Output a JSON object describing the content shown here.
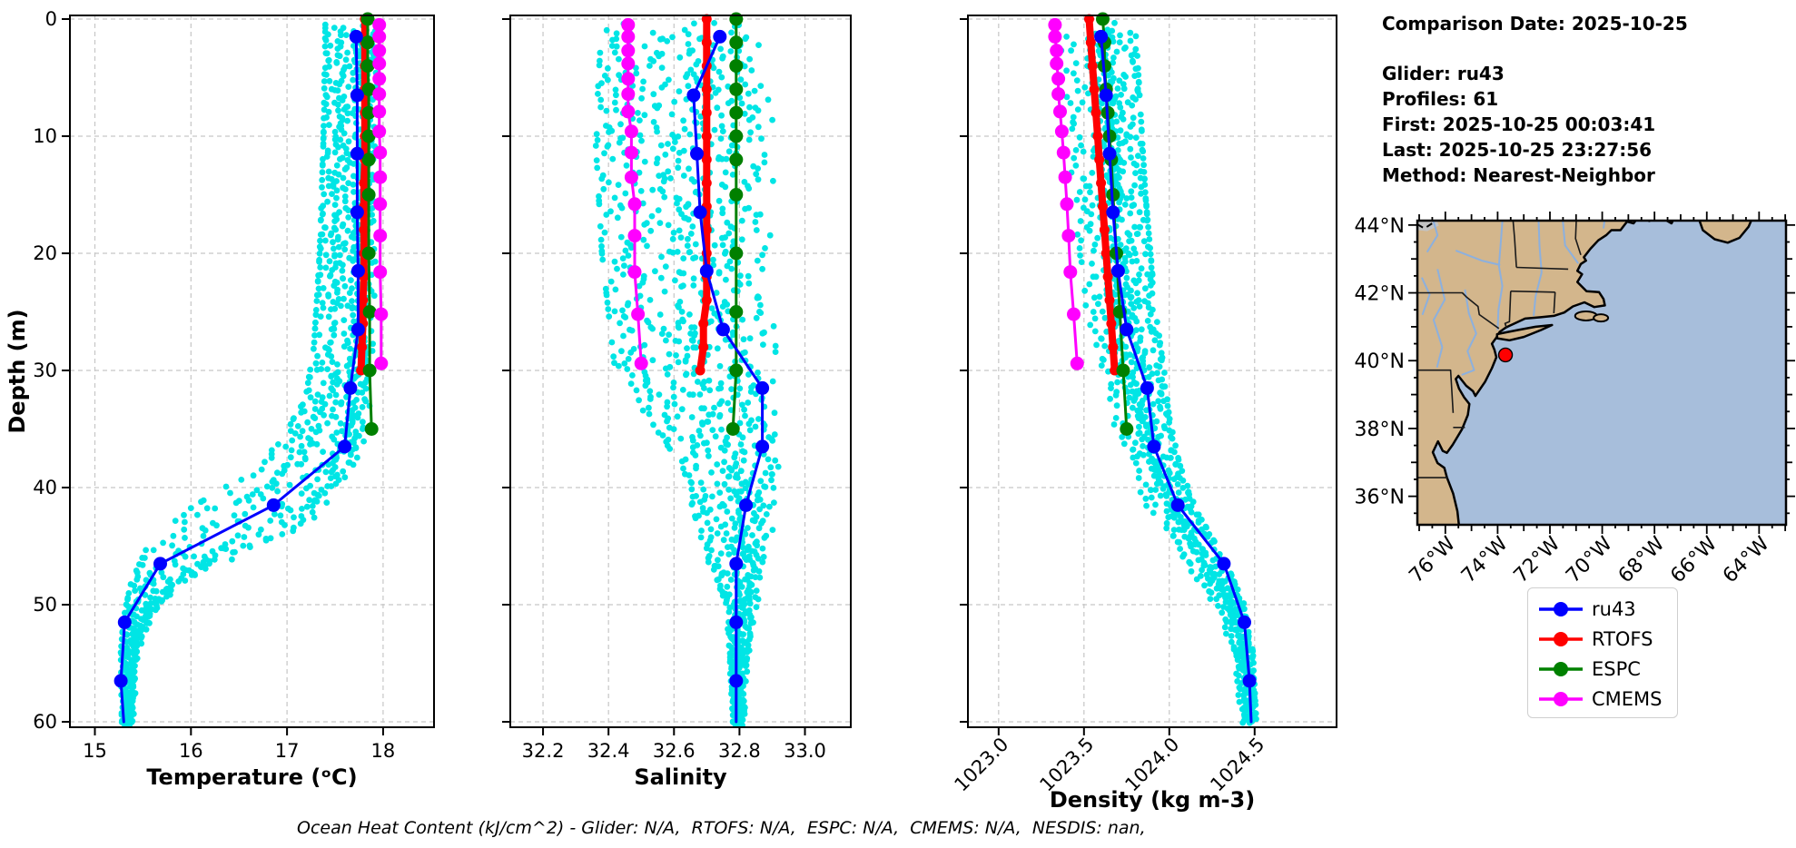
{
  "info_panel": {
    "lines": [
      "Comparison Date: 2025-10-25",
      "Glider: ru43",
      "Profiles: 61",
      "First: 2025-10-25 00:03:41",
      "Last: 2025-10-25 23:27:56",
      "Method: Nearest-Neighbor"
    ]
  },
  "footer": {
    "text": "Ocean Heat Content (kJ/cm^2) - Glider: N/A,  RTOFS: N/A,  ESPC: N/A,  CMEMS: N/A,  NESDIS: nan,"
  },
  "legend": {
    "items": [
      {
        "label": "ru43",
        "color": "#0000ff"
      },
      {
        "label": "RTOFS",
        "color": "#ff0000"
      },
      {
        "label": "ESPC",
        "color": "#008000"
      },
      {
        "label": "CMEMS",
        "color": "#ff00ff"
      }
    ]
  },
  "chart_data": [
    {
      "name": "temperature",
      "type": "scatter",
      "xlabel": "Temperature (ᵒC)",
      "ylabel": "Depth (m)",
      "xlim": [
        14.74,
        18.53
      ],
      "ylim": [
        0,
        60
      ],
      "xticks": [
        15,
        16,
        17,
        18
      ],
      "xtick_labels": [
        "15",
        "16",
        "17",
        "18"
      ],
      "yticks": [
        0,
        10,
        20,
        30,
        40,
        50,
        60
      ],
      "ytick_labels": [
        "0",
        "10",
        "20",
        "30",
        "40",
        "50",
        "60"
      ],
      "show_ytick_labels": true,
      "rotate_xtick_labels": false,
      "grid": true,
      "glider_scatter": {
        "name": "glider-raw-points",
        "color": "#00e5e5",
        "seed": 11,
        "profiles": 13,
        "step": 0.5,
        "band": [
          [
            0,
            17.4,
            17.95
          ],
          [
            10,
            17.38,
            17.95
          ],
          [
            20,
            17.34,
            17.92
          ],
          [
            28,
            17.28,
            17.9
          ],
          [
            32,
            17.2,
            17.88
          ],
          [
            36,
            16.95,
            17.82
          ],
          [
            39,
            16.55,
            17.75
          ],
          [
            42,
            15.95,
            17.55
          ],
          [
            45,
            15.55,
            16.75
          ],
          [
            48,
            15.38,
            15.95
          ],
          [
            51,
            15.3,
            15.6
          ],
          [
            54,
            15.27,
            15.45
          ],
          [
            60,
            15.28,
            15.4
          ]
        ]
      },
      "series": [
        {
          "name": "RTOFS",
          "color": "#ff0000",
          "lw": 8,
          "ms": 5.5,
          "depths": [
            0,
            2,
            4,
            6,
            8,
            10,
            12,
            14,
            16,
            18,
            20,
            22,
            24,
            26,
            28,
            30
          ],
          "values": [
            17.81,
            17.81,
            17.81,
            17.81,
            17.81,
            17.81,
            17.81,
            17.8,
            17.8,
            17.8,
            17.8,
            17.8,
            17.79,
            17.79,
            17.78,
            17.77
          ]
        },
        {
          "name": "ESPC",
          "color": "#008000",
          "lw": 3,
          "ms": 7.5,
          "depths": [
            0,
            2,
            4,
            6,
            8,
            10,
            12,
            15,
            20,
            25,
            30,
            35
          ],
          "values": [
            17.84,
            17.84,
            17.84,
            17.85,
            17.85,
            17.85,
            17.85,
            17.85,
            17.85,
            17.86,
            17.86,
            17.88
          ]
        },
        {
          "name": "CMEMS",
          "color": "#ff00ff",
          "lw": 3,
          "ms": 7.5,
          "depths": [
            0.5,
            1.5,
            2.7,
            3.8,
            5.1,
            6.4,
            7.9,
            9.6,
            11.4,
            13.5,
            15.8,
            18.5,
            21.6,
            25.2,
            29.4
          ],
          "values": [
            17.96,
            17.96,
            17.96,
            17.96,
            17.96,
            17.96,
            17.96,
            17.96,
            17.97,
            17.97,
            17.97,
            17.97,
            17.97,
            17.98,
            17.98
          ]
        },
        {
          "name": "ru43",
          "color": "#0000ff",
          "lw": 3,
          "ms": 7.5,
          "depths": [
            1.5,
            6.5,
            11.5,
            16.5,
            21.5,
            26.5,
            31.5,
            36.5,
            41.5,
            46.5,
            51.5,
            56.5,
            60
          ],
          "values": [
            17.72,
            17.73,
            17.73,
            17.73,
            17.74,
            17.74,
            17.66,
            17.6,
            16.86,
            15.68,
            15.31,
            15.27,
            15.3
          ]
        }
      ]
    },
    {
      "name": "salinity",
      "type": "scatter",
      "xlabel": "Salinity",
      "ylabel": "",
      "xlim": [
        32.1,
        33.14
      ],
      "ylim": [
        0,
        60
      ],
      "xticks": [
        32.2,
        32.4,
        32.6,
        32.8,
        33.0
      ],
      "xtick_labels": [
        "32.2",
        "32.4",
        "32.6",
        "32.8",
        "33.0"
      ],
      "yticks": [
        0,
        10,
        20,
        30,
        40,
        50,
        60
      ],
      "ytick_labels": [],
      "show_ytick_labels": false,
      "rotate_xtick_labels": false,
      "grid": true,
      "glider_scatter": {
        "name": "glider-raw-points",
        "color": "#00e5e5",
        "seed": 23,
        "profiles": 13,
        "step": 0.5,
        "band": [
          [
            0,
            32.38,
            32.93
          ],
          [
            10,
            32.36,
            32.94
          ],
          [
            20,
            32.38,
            32.94
          ],
          [
            30,
            32.42,
            32.95
          ],
          [
            34,
            32.52,
            32.95
          ],
          [
            38,
            32.62,
            32.94
          ],
          [
            42,
            32.66,
            32.93
          ],
          [
            46,
            32.7,
            32.9
          ],
          [
            50,
            32.76,
            32.86
          ],
          [
            55,
            32.77,
            32.83
          ],
          [
            60,
            32.78,
            32.82
          ]
        ]
      },
      "series": [
        {
          "name": "RTOFS",
          "color": "#ff0000",
          "lw": 8,
          "ms": 5.5,
          "depths": [
            0,
            2,
            4,
            6,
            8,
            10,
            12,
            14,
            16,
            18,
            20,
            22,
            24,
            26,
            28,
            30
          ],
          "values": [
            32.7,
            32.7,
            32.7,
            32.7,
            32.7,
            32.7,
            32.7,
            32.7,
            32.7,
            32.7,
            32.7,
            32.7,
            32.7,
            32.69,
            32.69,
            32.68
          ]
        },
        {
          "name": "ESPC",
          "color": "#008000",
          "lw": 3,
          "ms": 7.5,
          "depths": [
            0,
            2,
            4,
            6,
            8,
            10,
            12,
            15,
            20,
            25,
            30,
            35
          ],
          "values": [
            32.79,
            32.79,
            32.79,
            32.79,
            32.79,
            32.79,
            32.79,
            32.79,
            32.79,
            32.79,
            32.79,
            32.78
          ]
        },
        {
          "name": "CMEMS",
          "color": "#ff00ff",
          "lw": 3,
          "ms": 7.5,
          "depths": [
            0.5,
            1.5,
            2.7,
            3.8,
            5.1,
            6.4,
            7.9,
            9.6,
            11.4,
            13.5,
            15.8,
            18.5,
            21.6,
            25.2,
            29.4
          ],
          "values": [
            32.46,
            32.46,
            32.46,
            32.46,
            32.46,
            32.46,
            32.46,
            32.47,
            32.47,
            32.47,
            32.48,
            32.48,
            32.48,
            32.49,
            32.5
          ]
        },
        {
          "name": "ru43",
          "color": "#0000ff",
          "lw": 3,
          "ms": 7.5,
          "depths": [
            1.5,
            6.5,
            11.5,
            16.5,
            21.5,
            26.5,
            31.5,
            36.5,
            41.5,
            46.5,
            51.5,
            56.5,
            60
          ],
          "values": [
            32.74,
            32.66,
            32.67,
            32.68,
            32.7,
            32.75,
            32.87,
            32.87,
            32.82,
            32.79,
            32.79,
            32.79,
            32.79
          ]
        }
      ]
    },
    {
      "name": "density",
      "type": "scatter",
      "xlabel": "Density (kg m-3)",
      "ylabel": "",
      "xlim": [
        1022.82,
        1024.98
      ],
      "ylim": [
        0,
        60
      ],
      "xticks": [
        1023.0,
        1023.5,
        1024.0,
        1024.5
      ],
      "xtick_labels": [
        "1023.0",
        "1023.5",
        "1024.0",
        "1024.5"
      ],
      "yticks": [
        0,
        10,
        20,
        30,
        40,
        50,
        60
      ],
      "ytick_labels": [],
      "show_ytick_labels": false,
      "rotate_xtick_labels": true,
      "grid": true,
      "glider_scatter": {
        "name": "glider-raw-points",
        "color": "#00e5e5",
        "seed": 37,
        "profiles": 12,
        "step": 0.5,
        "band": [
          [
            0,
            1023.32,
            1023.8
          ],
          [
            5,
            1023.34,
            1023.82
          ],
          [
            10,
            1023.36,
            1023.84
          ],
          [
            15,
            1023.4,
            1023.86
          ],
          [
            20,
            1023.44,
            1023.89
          ],
          [
            25,
            1023.48,
            1023.92
          ],
          [
            30,
            1023.55,
            1023.97
          ],
          [
            34,
            1023.62,
            1024.0
          ],
          [
            38,
            1023.72,
            1024.06
          ],
          [
            42,
            1023.85,
            1024.16
          ],
          [
            46,
            1024.05,
            1024.32
          ],
          [
            50,
            1024.25,
            1024.44
          ],
          [
            54,
            1024.36,
            1024.49
          ],
          [
            60,
            1024.42,
            1024.51
          ]
        ]
      },
      "series": [
        {
          "name": "RTOFS",
          "color": "#ff0000",
          "lw": 8,
          "ms": 5.5,
          "depths": [
            0,
            2,
            4,
            6,
            8,
            10,
            12,
            14,
            16,
            18,
            20,
            22,
            24,
            26,
            28,
            30
          ],
          "values": [
            1023.53,
            1023.54,
            1023.55,
            1023.56,
            1023.57,
            1023.58,
            1023.59,
            1023.6,
            1023.61,
            1023.62,
            1023.63,
            1023.64,
            1023.65,
            1023.66,
            1023.67,
            1023.68
          ]
        },
        {
          "name": "ESPC",
          "color": "#008000",
          "lw": 3,
          "ms": 7.5,
          "depths": [
            0,
            2,
            4,
            6,
            8,
            10,
            12,
            15,
            20,
            25,
            30,
            35
          ],
          "values": [
            1023.61,
            1023.62,
            1023.62,
            1023.63,
            1023.64,
            1023.65,
            1023.66,
            1023.67,
            1023.69,
            1023.71,
            1023.73,
            1023.75
          ]
        },
        {
          "name": "CMEMS",
          "color": "#ff00ff",
          "lw": 3,
          "ms": 7.5,
          "depths": [
            0.5,
            1.5,
            2.7,
            3.8,
            5.1,
            6.4,
            7.9,
            9.6,
            11.4,
            13.5,
            15.8,
            18.5,
            21.6,
            25.2,
            29.4
          ],
          "values": [
            1023.33,
            1023.33,
            1023.34,
            1023.34,
            1023.35,
            1023.35,
            1023.36,
            1023.37,
            1023.38,
            1023.39,
            1023.4,
            1023.41,
            1023.42,
            1023.44,
            1023.46
          ]
        },
        {
          "name": "ru43",
          "color": "#0000ff",
          "lw": 3,
          "ms": 7.5,
          "depths": [
            1.5,
            6.5,
            11.5,
            16.5,
            21.5,
            26.5,
            31.5,
            36.5,
            41.5,
            46.5,
            51.5,
            56.5,
            60
          ],
          "values": [
            1023.6,
            1023.63,
            1023.65,
            1023.67,
            1023.7,
            1023.75,
            1023.87,
            1023.91,
            1024.05,
            1024.32,
            1024.44,
            1024.47,
            1024.48
          ]
        }
      ]
    }
  ],
  "map": {
    "lat_tick_values": [
      44,
      42,
      40,
      38,
      36
    ],
    "lat_tick_labels": [
      "44°N",
      "42°N",
      "40°N",
      "38°N",
      "36°N"
    ],
    "lon_tick_values": [
      76,
      74,
      72,
      70,
      68,
      66,
      64
    ],
    "lon_tick_labels": [
      "76°W",
      "74°W",
      "72°W",
      "70°W",
      "68°W",
      "66°W",
      "64°W"
    ],
    "extent": {
      "west": 77.07,
      "east": 62.97,
      "south": 35.16,
      "north": 44.13
    },
    "glider_marker": {
      "lat": 40.17,
      "lon_w": 73.7,
      "color": "#ff0000"
    },
    "colors": {
      "land": "#d3b68c",
      "ocean": "#a7bedb",
      "coast": "#000000",
      "border": "#1a1a1a",
      "river": "#8cb0de",
      "canada_gray": "#c3c3c3"
    }
  }
}
